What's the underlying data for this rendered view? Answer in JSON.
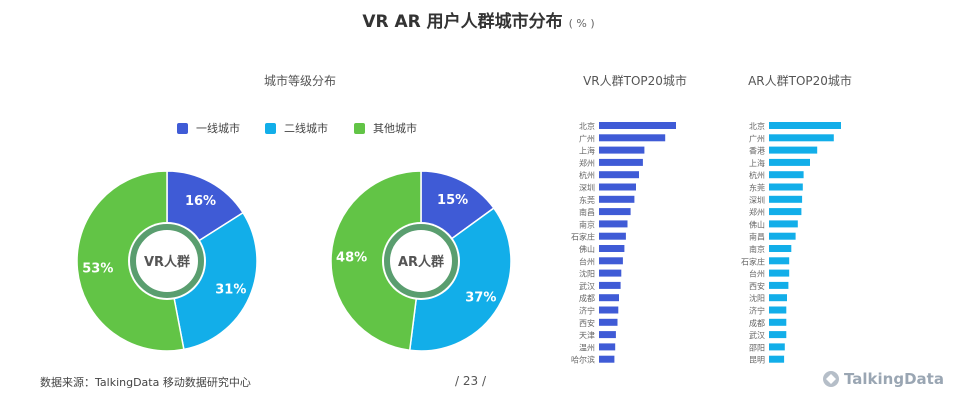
{
  "title": {
    "main": "VR  AR  用户人群城市分布",
    "unit": "( % )"
  },
  "colors": {
    "tier1": "#3f5bd6",
    "tier2": "#12aee9",
    "other": "#62c446",
    "vr_bar": "#3f5bd6",
    "ar_bar": "#12aee9",
    "center_ring": "#5a9e6f"
  },
  "footer": {
    "source": "数据来源：TalkingData 移动数据研究中心",
    "page": "/  23  /",
    "brand": "TalkingData"
  },
  "chart_data": [
    {
      "type": "pie",
      "title": "城市等级分布",
      "center_label": "VR人群",
      "legend": [
        "一线城市",
        "二线城市",
        "其他城市"
      ],
      "legend_position": "top",
      "slices": [
        {
          "name": "一线城市",
          "value": 16,
          "label": "16%"
        },
        {
          "name": "二线城市",
          "value": 31,
          "label": "31%"
        },
        {
          "name": "其他城市",
          "value": 53,
          "label": "53%"
        }
      ]
    },
    {
      "type": "pie",
      "title": "",
      "center_label": "AR人群",
      "slices": [
        {
          "name": "一线城市",
          "value": 15,
          "label": "15%"
        },
        {
          "name": "二线城市",
          "value": 37,
          "label": "37%"
        },
        {
          "name": "其他城市",
          "value": 48,
          "label": "48%"
        }
      ]
    },
    {
      "type": "bar",
      "orientation": "horizontal",
      "title": "VR人群TOP20城市",
      "categories": [
        "北京",
        "广州",
        "上海",
        "郑州",
        "杭州",
        "深圳",
        "东莞",
        "南昌",
        "南京",
        "石家庄",
        "佛山",
        "台州",
        "沈阳",
        "武汉",
        "成都",
        "济宁",
        "西安",
        "天津",
        "温州",
        "哈尔滨"
      ],
      "values": [
        100,
        86,
        59,
        57,
        52,
        48,
        46,
        41,
        37,
        35,
        33,
        31,
        29,
        28,
        26,
        25,
        24,
        22,
        21,
        20
      ]
    },
    {
      "type": "bar",
      "orientation": "horizontal",
      "title": "AR人群TOP20城市",
      "categories": [
        "北京",
        "广州",
        "香港",
        "上海",
        "杭州",
        "东莞",
        "深圳",
        "郑州",
        "佛山",
        "南昌",
        "南京",
        "石家庄",
        "台州",
        "西安",
        "沈阳",
        "济宁",
        "成都",
        "武汉",
        "邵阳",
        "昆明"
      ],
      "values": [
        100,
        90,
        67,
        57,
        48,
        47,
        46,
        45,
        40,
        37,
        31,
        28,
        28,
        27,
        25,
        24,
        24,
        24,
        22,
        21
      ]
    }
  ]
}
